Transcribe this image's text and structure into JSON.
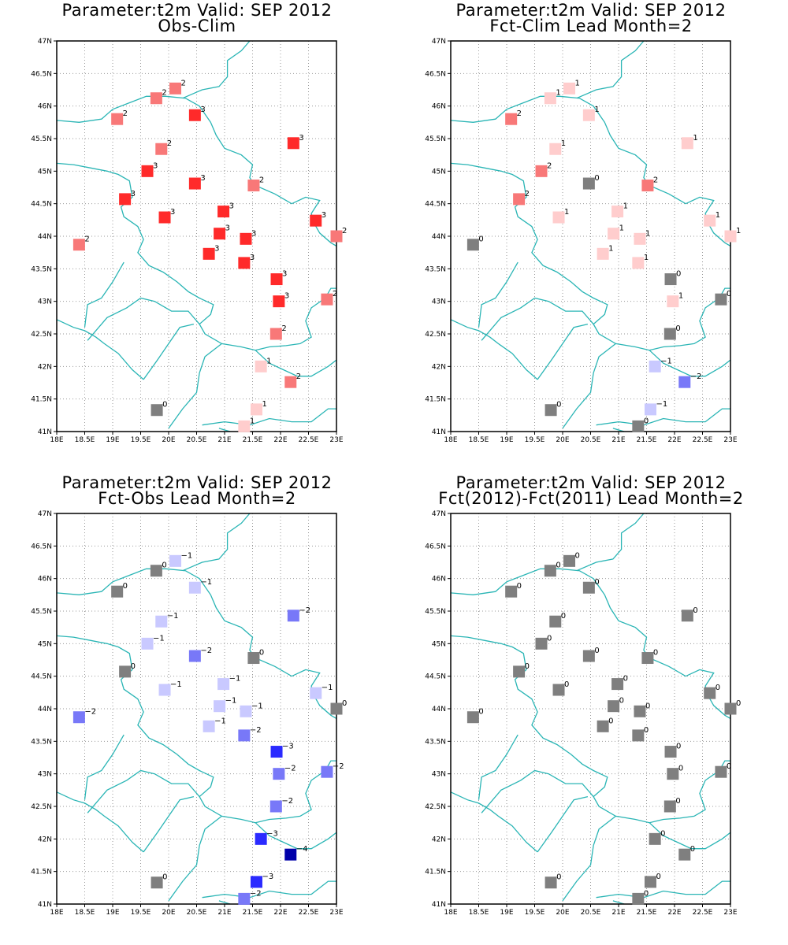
{
  "colors": {
    "coast": "#2ab5b5",
    "grid": "#9a9a9a",
    "zero": "#7f7f7f",
    "pos1": "#ffcdcd",
    "pos2": "#f87878",
    "pos3": "#ff2a2a",
    "neg1": "#c9c9ff",
    "neg2": "#7878f8",
    "neg3": "#2a2aff",
    "neg4": "#0000aa"
  },
  "axes": {
    "lon_ticks": [
      "18E",
      "18.5E",
      "19E",
      "19.5E",
      "20E",
      "20.5E",
      "21E",
      "21.5E",
      "22E",
      "22.5E",
      "23E"
    ],
    "lat_ticks": [
      "41N",
      "41.5N",
      "42N",
      "42.5N",
      "43N",
      "43.5N",
      "44N",
      "44.5N",
      "45N",
      "45.5N",
      "46N",
      "46.5N",
      "47N"
    ],
    "lon_range": [
      18,
      23
    ],
    "lat_range": [
      41,
      47
    ],
    "grid": "dotted"
  },
  "stations": [
    [
      20.12,
      46.27
    ],
    [
      19.78,
      46.12
    ],
    [
      19.08,
      45.8
    ],
    [
      20.47,
      45.86
    ],
    [
      22.23,
      45.43
    ],
    [
      19.87,
      45.34
    ],
    [
      19.62,
      45.0
    ],
    [
      20.47,
      44.81
    ],
    [
      21.52,
      44.78
    ],
    [
      19.22,
      44.57
    ],
    [
      20.98,
      44.38
    ],
    [
      19.93,
      44.29
    ],
    [
      22.63,
      44.24
    ],
    [
      20.91,
      44.04
    ],
    [
      23.0,
      44.0
    ],
    [
      21.38,
      43.96
    ],
    [
      18.4,
      43.87
    ],
    [
      20.72,
      43.73
    ],
    [
      21.35,
      43.59
    ],
    [
      21.93,
      43.34
    ],
    [
      21.97,
      43.0
    ],
    [
      22.83,
      43.03
    ],
    [
      21.92,
      42.5
    ],
    [
      21.65,
      42.0
    ],
    [
      22.18,
      41.76
    ],
    [
      19.79,
      41.33
    ],
    [
      21.57,
      41.34
    ],
    [
      21.35,
      41.08
    ]
  ],
  "panels": [
    {
      "title_line1": "Parameter:t2m Valid: SEP 2012",
      "title_line2": "Obs-Clim",
      "values": [
        2,
        2,
        2,
        3,
        3,
        2,
        3,
        3,
        2,
        3,
        3,
        3,
        3,
        3,
        2,
        3,
        2,
        3,
        3,
        3,
        3,
        2,
        2,
        1,
        2,
        0,
        1,
        1
      ]
    },
    {
      "title_line1": "Parameter:t2m Valid: SEP 2012",
      "title_line2": "Fct-Clim Lead Month=2",
      "values": [
        1,
        1,
        2,
        1,
        1,
        1,
        2,
        0,
        2,
        2,
        1,
        1,
        1,
        1,
        1,
        1,
        0,
        1,
        1,
        0,
        1,
        0,
        0,
        -1,
        -2,
        0,
        -1,
        0
      ]
    },
    {
      "title_line1": "Parameter:t2m Valid: SEP 2012",
      "title_line2": "Fct-Obs Lead Month=2",
      "values": [
        -1,
        0,
        0,
        -1,
        -2,
        -1,
        -1,
        -2,
        0,
        0,
        -1,
        -1,
        -1,
        -1,
        0,
        -1,
        -2,
        -1,
        -2,
        -3,
        -2,
        -2,
        -2,
        -3,
        -4,
        0,
        -3,
        -2
      ]
    },
    {
      "title_line1": "Parameter:t2m Valid: SEP 2012",
      "title_line2": "Fct(2012)-Fct(2011) Lead Month=2",
      "values": [
        0,
        0,
        0,
        0,
        0,
        0,
        0,
        0,
        0,
        0,
        0,
        0,
        0,
        0,
        0,
        0,
        0,
        0,
        0,
        0,
        0,
        0,
        0,
        0,
        0,
        0,
        0,
        0
      ]
    }
  ]
}
